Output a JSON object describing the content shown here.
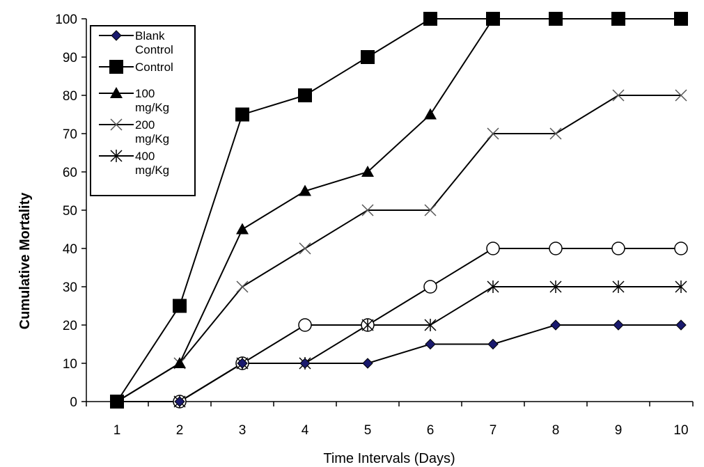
{
  "chart_data": {
    "type": "line",
    "title": "",
    "xlabel": "Time Intervals (Days)",
    "ylabel": "Cumulative Mortality",
    "categories": [
      "1",
      "2",
      "3",
      "4",
      "5",
      "6",
      "7",
      "8",
      "9",
      "10"
    ],
    "ylim": [
      0,
      100
    ],
    "yticks": [
      "0",
      "10",
      "20",
      "30",
      "40",
      "50",
      "60",
      "70",
      "80",
      "90",
      "100"
    ],
    "grid": false,
    "legend_position": "top-left",
    "series": [
      {
        "name": "Blank Control",
        "legend_lines": [
          "Blank",
          "Control"
        ],
        "marker": "diamond",
        "values": [
          0,
          0,
          10,
          10,
          10,
          15,
          15,
          20,
          20,
          20
        ]
      },
      {
        "name": "Control",
        "legend_lines": [
          "Control"
        ],
        "marker": "square",
        "values": [
          0,
          25,
          75,
          80,
          90,
          100,
          100,
          100,
          100,
          100
        ]
      },
      {
        "name": "100 mg/Kg",
        "legend_lines": [
          "100",
          "mg/Kg"
        ],
        "marker": "triangle",
        "values": [
          0,
          10,
          45,
          55,
          60,
          75,
          100,
          100,
          100,
          100
        ]
      },
      {
        "name": "200 mg/Kg",
        "legend_lines": [
          "200",
          "mg/Kg"
        ],
        "marker": "x",
        "values": [
          0,
          10,
          30,
          40,
          50,
          50,
          70,
          70,
          80,
          80
        ]
      },
      {
        "name": "400 mg/Kg",
        "legend_lines": [
          "400",
          "mg/Kg"
        ],
        "marker": "star",
        "values": [
          0,
          0,
          10,
          10,
          20,
          20,
          30,
          30,
          30,
          30
        ]
      },
      {
        "name": "",
        "legend_lines": [],
        "marker": "circle",
        "values": [
          0,
          0,
          10,
          20,
          20,
          30,
          40,
          40,
          40,
          40
        ]
      }
    ]
  }
}
